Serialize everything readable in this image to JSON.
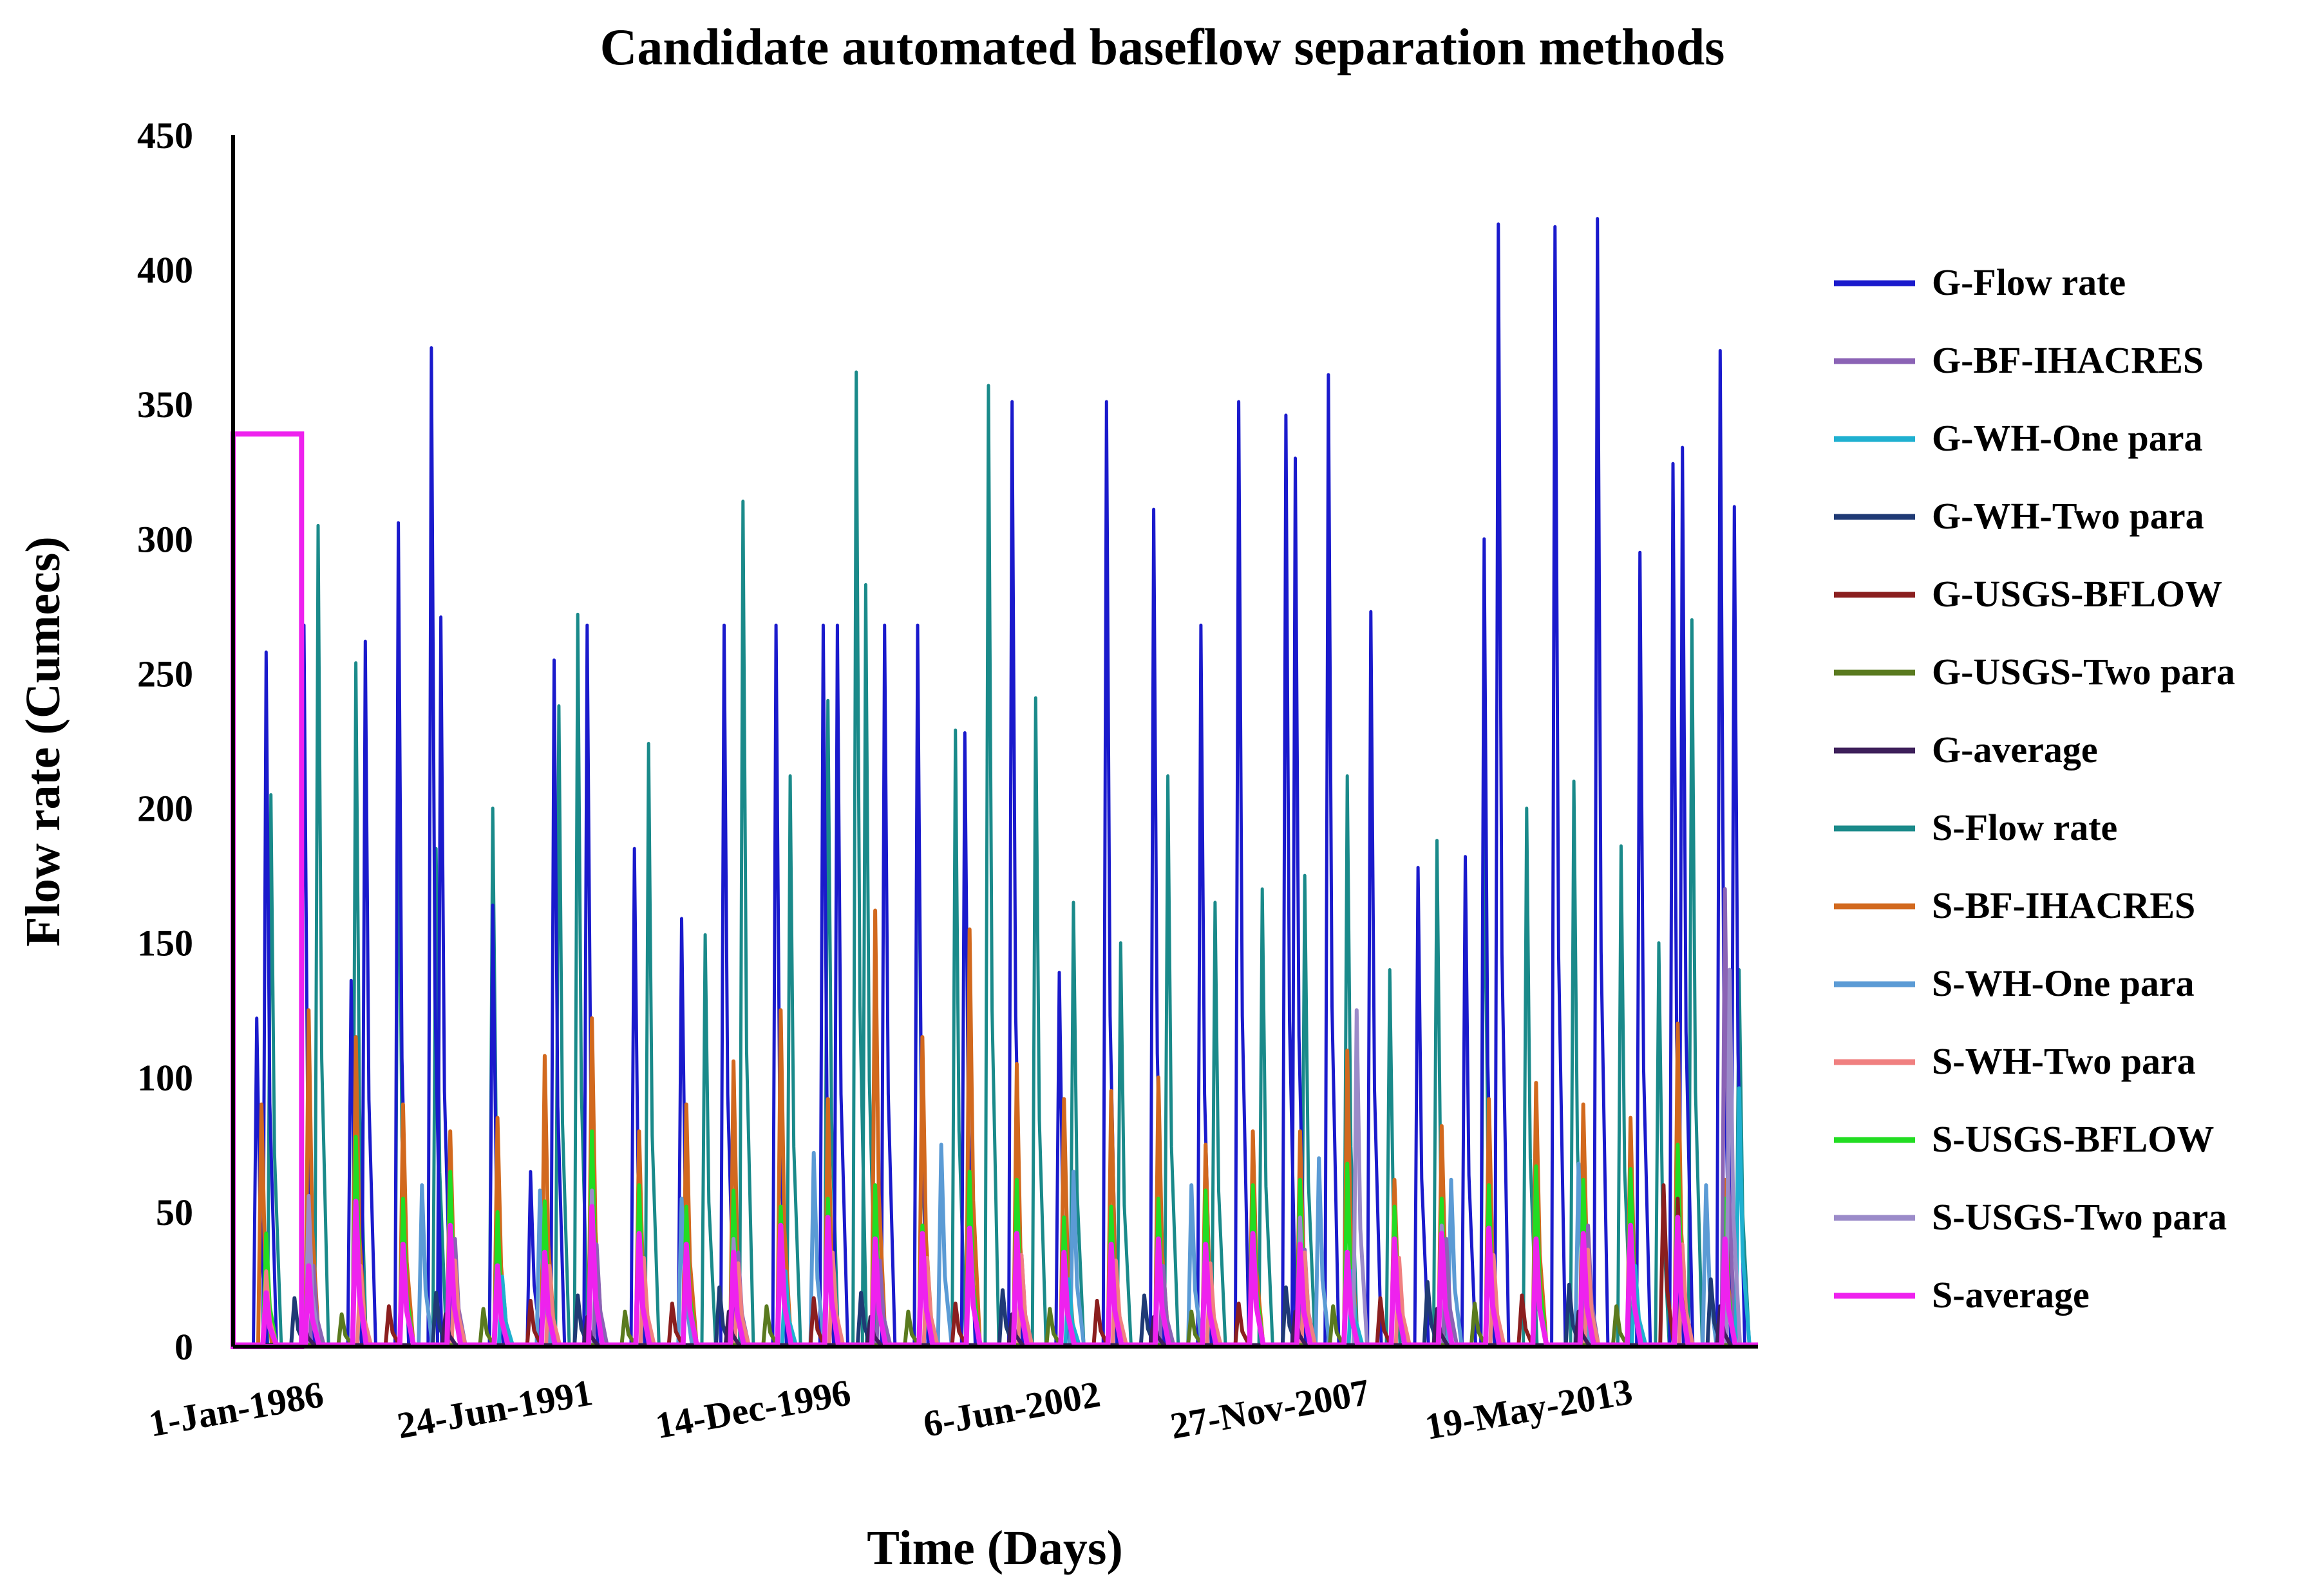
{
  "chart_data": {
    "type": "line",
    "title": "Candidate automated baseflow separation methods",
    "xlabel": "Time (Days)",
    "ylabel": "Flow rate (Cumecs)",
    "ylim": [
      0,
      450
    ],
    "yticks": [
      0,
      50,
      100,
      150,
      200,
      250,
      300,
      350,
      400,
      450
    ],
    "xlim": [
      1986.0,
      2018.3
    ],
    "xticks": [
      {
        "label": "1-Jan-1986",
        "value": 1986.0
      },
      {
        "label": "24-Jun-1991",
        "value": 1991.48
      },
      {
        "label": "14-Dec-1996",
        "value": 1996.95
      },
      {
        "label": "6-Jun-2002",
        "value": 2002.43
      },
      {
        "label": "27-Nov-2007",
        "value": 2007.9
      },
      {
        "label": "19-May-2013",
        "value": 2013.38
      }
    ],
    "legend_position": "right",
    "series": [
      {
        "name": "G-Flow rate",
        "color": "#1a1acc",
        "peaks": [
          [
            1986.5,
            122
          ],
          [
            1986.7,
            258
          ],
          [
            1987.5,
            268
          ],
          [
            1988.5,
            136
          ],
          [
            1988.8,
            262
          ],
          [
            1989.5,
            306
          ],
          [
            1990.2,
            371
          ],
          [
            1990.4,
            271
          ],
          [
            1991.5,
            164
          ],
          [
            1992.3,
            65
          ],
          [
            1992.8,
            255
          ],
          [
            1993.5,
            268
          ],
          [
            1994.5,
            185
          ],
          [
            1995.5,
            159
          ],
          [
            1996.4,
            268
          ],
          [
            1997.5,
            268
          ],
          [
            1998.5,
            268
          ],
          [
            1998.8,
            268
          ],
          [
            1999.8,
            268
          ],
          [
            2000.5,
            268
          ],
          [
            2001.5,
            228
          ],
          [
            2002.5,
            351
          ],
          [
            2003.5,
            139
          ],
          [
            2004.5,
            351
          ],
          [
            2005.5,
            311
          ],
          [
            2006.5,
            268
          ],
          [
            2007.3,
            351
          ],
          [
            2008.3,
            346
          ],
          [
            2008.5,
            330
          ],
          [
            2009.2,
            361
          ],
          [
            2010.1,
            273
          ],
          [
            2011.1,
            178
          ],
          [
            2012.1,
            182
          ],
          [
            2012.5,
            300
          ],
          [
            2012.8,
            417
          ],
          [
            2014.0,
            416
          ],
          [
            2014.9,
            419
          ],
          [
            2015.8,
            295
          ],
          [
            2016.5,
            328
          ],
          [
            2016.7,
            334
          ],
          [
            2017.5,
            370
          ],
          [
            2017.8,
            312
          ]
        ]
      },
      {
        "name": "G-BF-IHACRES",
        "color": "#8b63b5",
        "peaks": [
          [
            1987.7,
            30
          ],
          [
            1990.7,
            40
          ],
          [
            1993.7,
            38
          ],
          [
            1996.7,
            35
          ],
          [
            1999.7,
            32
          ],
          [
            2002.7,
            34
          ],
          [
            2005.7,
            30
          ],
          [
            2008.7,
            36
          ],
          [
            2011.7,
            40
          ],
          [
            2014.7,
            45
          ],
          [
            2017.6,
            170
          ]
        ]
      },
      {
        "name": "G-WH-One para",
        "color": "#1fb0d0",
        "peaks": [
          [
            1988.7,
            22
          ],
          [
            1991.7,
            26
          ],
          [
            1994.7,
            24
          ],
          [
            1997.7,
            28
          ],
          [
            2000.7,
            22
          ],
          [
            2003.7,
            25
          ],
          [
            2006.7,
            24
          ],
          [
            2009.7,
            28
          ],
          [
            2012.7,
            26
          ],
          [
            2015.7,
            30
          ],
          [
            2017.9,
            96
          ]
        ]
      },
      {
        "name": "G-WH-Two para",
        "color": "#1f3a75",
        "peaks": [
          [
            1987.3,
            18
          ],
          [
            1990.3,
            20
          ],
          [
            1993.3,
            19
          ],
          [
            1996.3,
            22
          ],
          [
            1999.3,
            20
          ],
          [
            2002.3,
            21
          ],
          [
            2005.3,
            19
          ],
          [
            2008.3,
            22
          ],
          [
            2011.3,
            24
          ],
          [
            2014.3,
            23
          ],
          [
            2017.3,
            25
          ]
        ]
      },
      {
        "name": "G-USGS-BFLOW",
        "color": "#8b1f1f",
        "peaks": [
          [
            1989.3,
            15
          ],
          [
            1992.3,
            17
          ],
          [
            1995.3,
            16
          ],
          [
            1998.3,
            18
          ],
          [
            2001.3,
            16
          ],
          [
            2004.3,
            17
          ],
          [
            2007.3,
            16
          ],
          [
            2010.3,
            18
          ],
          [
            2013.3,
            19
          ],
          [
            2016.3,
            60
          ],
          [
            2016.6,
            55
          ]
        ]
      },
      {
        "name": "G-USGS-Two para",
        "color": "#5a7a1f",
        "peaks": [
          [
            1988.3,
            12
          ],
          [
            1991.3,
            14
          ],
          [
            1994.3,
            13
          ],
          [
            1997.3,
            15
          ],
          [
            2000.3,
            13
          ],
          [
            2003.3,
            14
          ],
          [
            2006.3,
            13
          ],
          [
            2009.3,
            15
          ],
          [
            2012.3,
            16
          ],
          [
            2015.3,
            15
          ]
        ]
      },
      {
        "name": "G-average",
        "color": "#3d1f5a",
        "peaks": [
          [
            1987.5,
            10
          ],
          [
            1990.5,
            12
          ],
          [
            1993.5,
            11
          ],
          [
            1996.5,
            13
          ],
          [
            1999.5,
            11
          ],
          [
            2002.5,
            12
          ],
          [
            2005.5,
            11
          ],
          [
            2008.5,
            13
          ],
          [
            2011.5,
            14
          ],
          [
            2014.5,
            13
          ],
          [
            2017.5,
            15
          ]
        ]
      },
      {
        "name": "S-Flow rate",
        "color": "#1a8a8a",
        "peaks": [
          [
            1986.8,
            205
          ],
          [
            1987.8,
            305
          ],
          [
            1988.6,
            254
          ],
          [
            1989.5,
            223
          ],
          [
            1990.3,
            185
          ],
          [
            1991.5,
            200
          ],
          [
            1992.9,
            238
          ],
          [
            1993.3,
            272
          ],
          [
            1994.8,
            224
          ],
          [
            1996.0,
            153
          ],
          [
            1996.8,
            314
          ],
          [
            1997.8,
            212
          ],
          [
            1998.6,
            240
          ],
          [
            1999.2,
            362
          ],
          [
            1999.4,
            283
          ],
          [
            2000.5,
            250
          ],
          [
            2001.3,
            229
          ],
          [
            2002.0,
            357
          ],
          [
            2003.0,
            241
          ],
          [
            2003.8,
            165
          ],
          [
            2004.8,
            150
          ],
          [
            2005.8,
            212
          ],
          [
            2006.8,
            165
          ],
          [
            2007.8,
            170
          ],
          [
            2008.7,
            175
          ],
          [
            2009.6,
            212
          ],
          [
            2010.5,
            140
          ],
          [
            2011.5,
            188
          ],
          [
            2012.5,
            210
          ],
          [
            2013.4,
            200
          ],
          [
            2014.4,
            210
          ],
          [
            2015.4,
            186
          ],
          [
            2016.2,
            150
          ],
          [
            2016.9,
            270
          ],
          [
            2017.9,
            140
          ]
        ]
      },
      {
        "name": "S-BF-IHACRES",
        "color": "#d2691e",
        "peaks": [
          [
            1986.6,
            90
          ],
          [
            1987.6,
            125
          ],
          [
            1988.6,
            115
          ],
          [
            1989.6,
            90
          ],
          [
            1990.6,
            80
          ],
          [
            1991.6,
            85
          ],
          [
            1992.6,
            108
          ],
          [
            1993.6,
            122
          ],
          [
            1994.6,
            80
          ],
          [
            1995.6,
            90
          ],
          [
            1996.6,
            106
          ],
          [
            1997.6,
            125
          ],
          [
            1998.6,
            92
          ],
          [
            1999.6,
            162
          ],
          [
            2000.6,
            115
          ],
          [
            2001.6,
            155
          ],
          [
            2002.6,
            105
          ],
          [
            2003.6,
            92
          ],
          [
            2004.6,
            95
          ],
          [
            2005.6,
            100
          ],
          [
            2006.6,
            75
          ],
          [
            2007.6,
            80
          ],
          [
            2008.6,
            80
          ],
          [
            2009.6,
            110
          ],
          [
            2010.6,
            62
          ],
          [
            2011.6,
            82
          ],
          [
            2012.6,
            92
          ],
          [
            2013.6,
            98
          ],
          [
            2014.6,
            90
          ],
          [
            2015.6,
            85
          ],
          [
            2016.6,
            120
          ],
          [
            2017.6,
            62
          ]
        ]
      },
      {
        "name": "S-WH-One para",
        "color": "#5b9bd5",
        "peaks": [
          [
            1987.6,
            55
          ],
          [
            1990.0,
            60
          ],
          [
            1992.5,
            58
          ],
          [
            1995.5,
            55
          ],
          [
            1998.3,
            72
          ],
          [
            2001.0,
            75
          ],
          [
            2003.8,
            65
          ],
          [
            2006.3,
            60
          ],
          [
            2009.0,
            70
          ],
          [
            2011.8,
            62
          ],
          [
            2014.5,
            68
          ],
          [
            2017.2,
            60
          ]
        ]
      },
      {
        "name": "S-WH-Two para",
        "color": "#f08080",
        "peaks": [
          [
            1986.7,
            28
          ],
          [
            1988.7,
            30
          ],
          [
            1990.7,
            32
          ],
          [
            1992.7,
            30
          ],
          [
            1994.7,
            33
          ],
          [
            1996.7,
            31
          ],
          [
            1998.7,
            35
          ],
          [
            2000.7,
            33
          ],
          [
            2002.7,
            34
          ],
          [
            2004.7,
            32
          ],
          [
            2006.7,
            31
          ],
          [
            2008.7,
            35
          ],
          [
            2010.7,
            33
          ],
          [
            2012.7,
            34
          ],
          [
            2014.7,
            36
          ],
          [
            2016.7,
            38
          ]
        ]
      },
      {
        "name": "S-USGS-BFLOW",
        "color": "#22dd22",
        "peaks": [
          [
            1986.7,
            42
          ],
          [
            1987.6,
            55
          ],
          [
            1988.6,
            78
          ],
          [
            1989.6,
            55
          ],
          [
            1990.6,
            65
          ],
          [
            1991.6,
            50
          ],
          [
            1992.6,
            54
          ],
          [
            1993.6,
            80
          ],
          [
            1994.6,
            60
          ],
          [
            1995.6,
            52
          ],
          [
            1996.6,
            58
          ],
          [
            1997.6,
            52
          ],
          [
            1998.6,
            55
          ],
          [
            1999.6,
            60
          ],
          [
            2000.6,
            45
          ],
          [
            2001.6,
            65
          ],
          [
            2002.6,
            62
          ],
          [
            2003.6,
            48
          ],
          [
            2004.6,
            52
          ],
          [
            2005.6,
            55
          ],
          [
            2006.6,
            58
          ],
          [
            2007.6,
            60
          ],
          [
            2008.6,
            62
          ],
          [
            2009.6,
            68
          ],
          [
            2010.6,
            52
          ],
          [
            2011.6,
            55
          ],
          [
            2012.6,
            60
          ],
          [
            2013.6,
            67
          ],
          [
            2014.6,
            62
          ],
          [
            2015.6,
            66
          ],
          [
            2016.6,
            75
          ],
          [
            2017.6,
            55
          ]
        ]
      },
      {
        "name": "S-USGS-Two para",
        "color": "#9b8bc9",
        "peaks": [
          [
            1987.6,
            56
          ],
          [
            1990.6,
            42
          ],
          [
            1993.6,
            58
          ],
          [
            1996.6,
            40
          ],
          [
            1999.6,
            38
          ],
          [
            2002.6,
            36
          ],
          [
            2005.6,
            35
          ],
          [
            2008.6,
            48
          ],
          [
            2009.8,
            125
          ],
          [
            2011.6,
            45
          ],
          [
            2014.6,
            40
          ],
          [
            2017.7,
            140
          ]
        ]
      },
      {
        "name": "S-average",
        "color": "#ee22ee",
        "peaks": [
          [
            1986.7,
            20
          ],
          [
            1987.6,
            30
          ],
          [
            1988.6,
            54
          ],
          [
            1989.6,
            38
          ],
          [
            1990.6,
            45
          ],
          [
            1991.6,
            30
          ],
          [
            1992.6,
            35
          ],
          [
            1993.6,
            52
          ],
          [
            1994.6,
            42
          ],
          [
            1995.6,
            38
          ],
          [
            1996.6,
            35
          ],
          [
            1997.6,
            45
          ],
          [
            1998.6,
            48
          ],
          [
            1999.6,
            40
          ],
          [
            2000.6,
            42
          ],
          [
            2001.6,
            44
          ],
          [
            2002.6,
            42
          ],
          [
            2003.6,
            35
          ],
          [
            2004.6,
            38
          ],
          [
            2005.6,
            40
          ],
          [
            2006.6,
            38
          ],
          [
            2007.6,
            42
          ],
          [
            2008.6,
            38
          ],
          [
            2009.6,
            35
          ],
          [
            2010.6,
            40
          ],
          [
            2011.6,
            42
          ],
          [
            2012.6,
            44
          ],
          [
            2013.6,
            40
          ],
          [
            2014.6,
            42
          ],
          [
            2015.6,
            45
          ],
          [
            2016.6,
            48
          ],
          [
            2017.6,
            40
          ]
        ]
      }
    ],
    "annotations": [
      {
        "type": "rectangle",
        "color": "#ee22ee",
        "x0": 1986.0,
        "x1": 1987.45,
        "y0": 0,
        "y1": 339
      }
    ]
  }
}
